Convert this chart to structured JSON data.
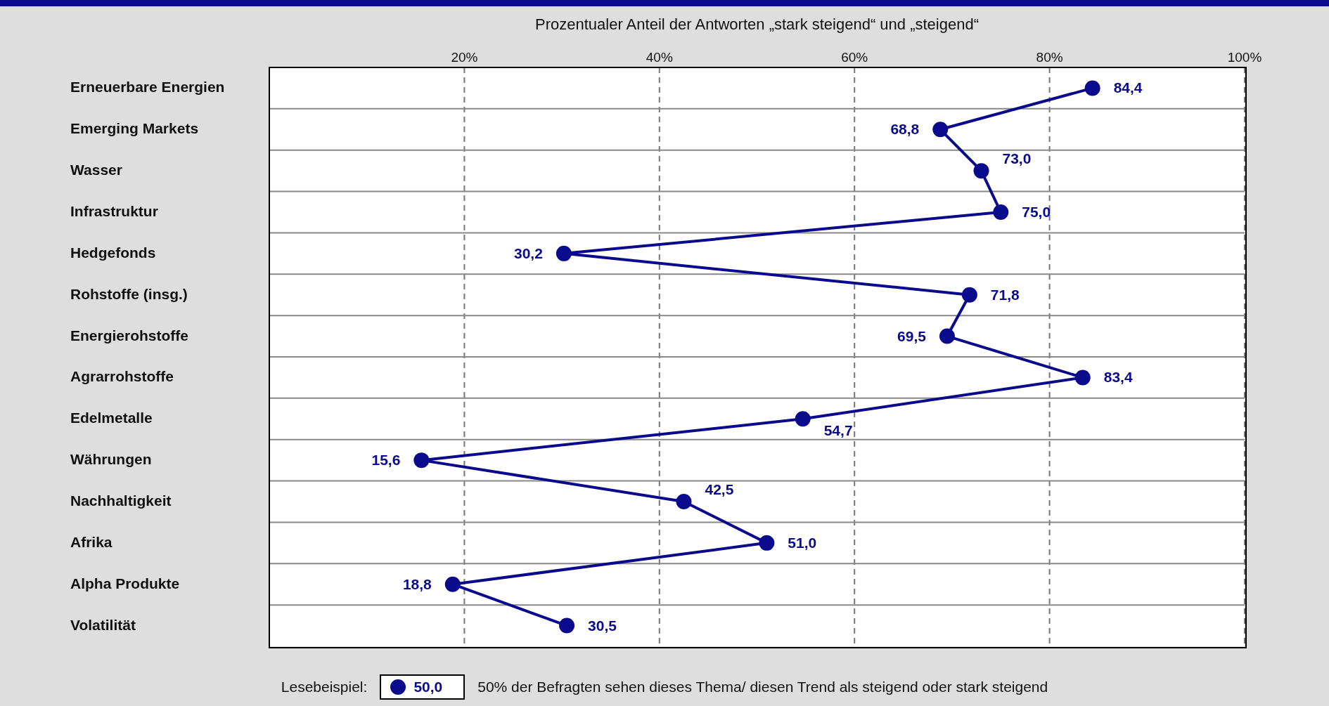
{
  "chart_data": {
    "type": "line",
    "orientation": "horizontal",
    "xlabel": "Prozentualer Anteil der Antworten „stark steigend“ und „steigend“",
    "categories": [
      "Erneuerbare Energien",
      "Emerging Markets",
      "Wasser",
      "Infrastruktur",
      "Hedgefonds",
      "Rohstoffe (insg.)",
      "Energierohstoffe",
      "Agrarrohstoffe",
      "Edelmetalle",
      "Währungen",
      "Nachhaltigkeit",
      "Afrika",
      "Alpha Produkte",
      "Volatilität"
    ],
    "series": [
      {
        "color": "#0a0a8c",
        "values": [
          84.4,
          68.8,
          73.0,
          75.0,
          30.2,
          71.8,
          69.5,
          83.4,
          54.7,
          15.6,
          42.5,
          51.0,
          18.8,
          30.5
        ],
        "value_labels": [
          "84,4",
          "68,8",
          "73,0",
          "75,0",
          "30,2",
          "71,8",
          "69,5",
          "83,4",
          "54,7",
          "15,6",
          "42,5",
          "51,0",
          "18,8",
          "30,5"
        ]
      }
    ],
    "xlim": [
      0,
      100
    ],
    "xticks": [
      {
        "value": 20,
        "label": "20%"
      },
      {
        "value": 40,
        "label": "40%"
      },
      {
        "value": 60,
        "label": "60%"
      },
      {
        "value": 80,
        "label": "80%"
      },
      {
        "value": 100,
        "label": "100%"
      }
    ],
    "grid": true,
    "marker": "circle",
    "line_style": "solid",
    "legend": false,
    "annotations": [
      "Lesebeispiel:",
      "50,0",
      "50% der Befragten sehen dieses Thema/ diesen Trend als steigend oder stark steigend"
    ]
  }
}
